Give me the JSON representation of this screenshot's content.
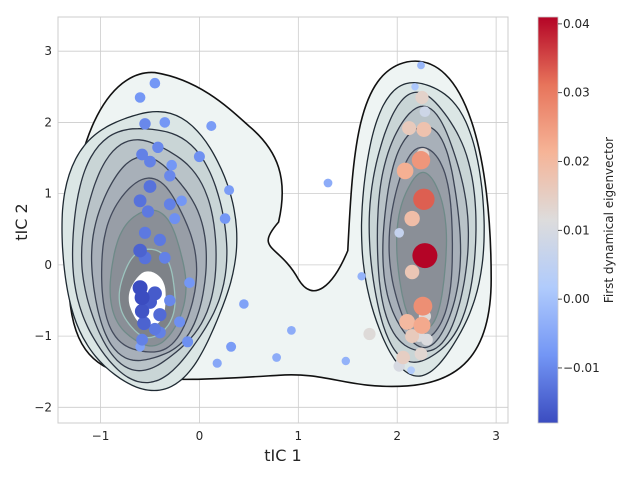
{
  "chart_data": {
    "type": "scatter",
    "title": "",
    "xlabel": "tIC 1",
    "ylabel": "tIC 2",
    "xlim": [
      -1.43,
      3.12
    ],
    "ylim": [
      -2.22,
      3.48
    ],
    "xticks": [
      -1,
      0,
      1,
      2,
      3
    ],
    "yticks": [
      -2,
      -1,
      0,
      1,
      2,
      3
    ],
    "xtick_labels": [
      "−1",
      "0",
      "1",
      "2",
      "3"
    ],
    "ytick_labels": [
      "−2",
      "−1",
      "0",
      "1",
      "2",
      "3"
    ],
    "grid": true,
    "background": "density contour map of tIC 1 vs tIC 2 with two basins",
    "colorbar": {
      "label": "First dynamical eigenvector",
      "range": [
        -0.018,
        0.041
      ],
      "ticks": [
        -0.01,
        0.0,
        0.01,
        0.02,
        0.03,
        0.04
      ],
      "tick_labels": [
        "−0.01",
        "0.00",
        "0.01",
        "0.02",
        "0.03",
        "0.04"
      ],
      "colormap": "coolwarm",
      "colors": [
        "#3b4cc0",
        "#7396f5",
        "#b0cbfc",
        "#dddcdc",
        "#f6b497",
        "#e7745b",
        "#b40426"
      ]
    },
    "points": [
      {
        "x": -0.6,
        "y": -0.32,
        "v": -0.018
      },
      {
        "x": -0.58,
        "y": -0.46,
        "v": -0.018
      },
      {
        "x": -0.58,
        "y": -0.65,
        "v": -0.017
      },
      {
        "x": -0.5,
        "y": -0.52,
        "v": -0.016
      },
      {
        "x": -0.45,
        "y": -0.4,
        "v": -0.016
      },
      {
        "x": -0.6,
        "y": 0.2,
        "v": -0.015
      },
      {
        "x": -0.56,
        "y": -0.82,
        "v": -0.015
      },
      {
        "x": -0.4,
        "y": -0.7,
        "v": -0.014
      },
      {
        "x": -0.55,
        "y": 0.1,
        "v": -0.013
      },
      {
        "x": -0.6,
        "y": 0.9,
        "v": -0.013
      },
      {
        "x": -0.5,
        "y": 1.1,
        "v": -0.013
      },
      {
        "x": -0.4,
        "y": 0.35,
        "v": -0.012
      },
      {
        "x": -0.55,
        "y": 0.45,
        "v": -0.012
      },
      {
        "x": -0.52,
        "y": 0.75,
        "v": -0.012
      },
      {
        "x": -0.45,
        "y": -0.9,
        "v": -0.012
      },
      {
        "x": -0.58,
        "y": -1.05,
        "v": -0.011
      },
      {
        "x": -0.4,
        "y": -0.95,
        "v": -0.011
      },
      {
        "x": -0.3,
        "y": 0.85,
        "v": -0.011
      },
      {
        "x": -0.5,
        "y": 1.45,
        "v": -0.011
      },
      {
        "x": -0.58,
        "y": 1.55,
        "v": -0.011
      },
      {
        "x": -0.35,
        "y": 0.1,
        "v": -0.011
      },
      {
        "x": -0.3,
        "y": 1.25,
        "v": -0.01
      },
      {
        "x": -0.42,
        "y": 1.65,
        "v": -0.01
      },
      {
        "x": -0.55,
        "y": 1.98,
        "v": -0.01
      },
      {
        "x": -0.3,
        "y": -0.5,
        "v": -0.01
      },
      {
        "x": -0.2,
        "y": -0.8,
        "v": -0.009
      },
      {
        "x": -0.12,
        "y": -1.08,
        "v": -0.009
      },
      {
        "x": 0.0,
        "y": 1.52,
        "v": -0.009
      },
      {
        "x": -0.25,
        "y": 0.65,
        "v": -0.009
      },
      {
        "x": -0.6,
        "y": 2.35,
        "v": -0.008
      },
      {
        "x": -0.45,
        "y": 2.55,
        "v": -0.008
      },
      {
        "x": -0.35,
        "y": 2.0,
        "v": -0.008
      },
      {
        "x": -0.28,
        "y": 1.4,
        "v": -0.008
      },
      {
        "x": -0.1,
        "y": -0.25,
        "v": -0.008
      },
      {
        "x": -0.18,
        "y": 0.9,
        "v": -0.008
      },
      {
        "x": 0.26,
        "y": 0.65,
        "v": -0.008
      },
      {
        "x": 0.32,
        "y": -1.15,
        "v": -0.007
      },
      {
        "x": 0.12,
        "y": 1.95,
        "v": -0.007
      },
      {
        "x": 0.3,
        "y": 1.05,
        "v": -0.007
      },
      {
        "x": 0.45,
        "y": -0.55,
        "v": -0.006
      },
      {
        "x": -0.6,
        "y": -1.15,
        "v": -0.006
      },
      {
        "x": 0.18,
        "y": -1.38,
        "v": -0.005
      },
      {
        "x": 0.93,
        "y": -0.92,
        "v": -0.004
      },
      {
        "x": 0.78,
        "y": -1.3,
        "v": -0.004
      },
      {
        "x": 1.3,
        "y": 1.15,
        "v": -0.004
      },
      {
        "x": 1.64,
        "y": -0.16,
        "v": -0.003
      },
      {
        "x": 1.48,
        "y": -1.35,
        "v": -0.003
      },
      {
        "x": 2.24,
        "y": 2.8,
        "v": -0.002
      },
      {
        "x": 2.18,
        "y": 2.5,
        "v": 0.001
      },
      {
        "x": 2.14,
        "y": -1.48,
        "v": 0.002
      },
      {
        "x": 2.02,
        "y": 0.45,
        "v": 0.006
      },
      {
        "x": 2.28,
        "y": 2.15,
        "v": 0.008
      },
      {
        "x": 2.02,
        "y": -1.42,
        "v": 0.01
      },
      {
        "x": 2.22,
        "y": -1.0,
        "v": 0.011
      },
      {
        "x": 2.3,
        "y": -1.05,
        "v": 0.011
      },
      {
        "x": 1.72,
        "y": -0.97,
        "v": 0.012
      },
      {
        "x": 2.28,
        "y": -0.72,
        "v": 0.012
      },
      {
        "x": 2.26,
        "y": 1.55,
        "v": 0.013
      },
      {
        "x": 2.24,
        "y": -1.25,
        "v": 0.013
      },
      {
        "x": 2.25,
        "y": 2.35,
        "v": 0.014
      },
      {
        "x": 2.06,
        "y": -1.3,
        "v": 0.015
      },
      {
        "x": 2.12,
        "y": 1.92,
        "v": 0.016
      },
      {
        "x": 2.15,
        "y": -1.0,
        "v": 0.016
      },
      {
        "x": 2.15,
        "y": -0.1,
        "v": 0.017
      },
      {
        "x": 2.27,
        "y": 1.9,
        "v": 0.018
      },
      {
        "x": 2.15,
        "y": 0.65,
        "v": 0.019
      },
      {
        "x": 2.1,
        "y": -0.8,
        "v": 0.02
      },
      {
        "x": 2.08,
        "y": 1.32,
        "v": 0.022
      },
      {
        "x": 2.25,
        "y": -0.85,
        "v": 0.023
      },
      {
        "x": 2.24,
        "y": 1.47,
        "v": 0.026
      },
      {
        "x": 2.26,
        "y": -0.58,
        "v": 0.027
      },
      {
        "x": 2.27,
        "y": 0.92,
        "v": 0.033
      },
      {
        "x": 2.28,
        "y": 0.13,
        "v": 0.041
      }
    ]
  }
}
